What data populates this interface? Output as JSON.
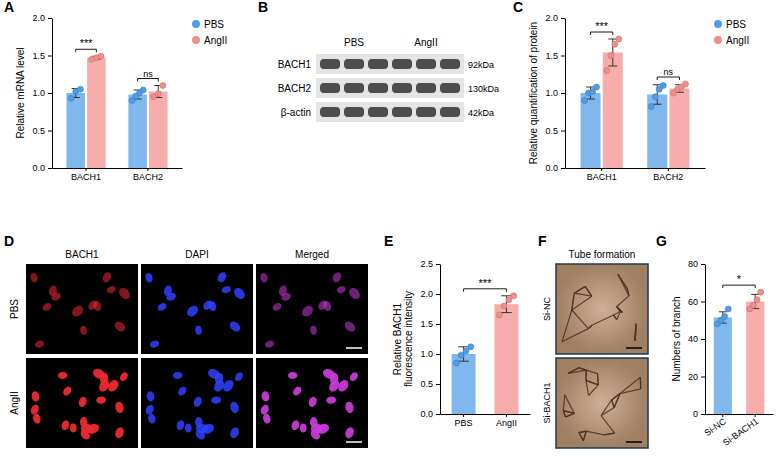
{
  "chart_data": [
    {
      "panel": "A",
      "type": "bar",
      "y_label": "Relative mRNA level",
      "categories": [
        "BACH1",
        "BACH2"
      ],
      "series": [
        {
          "name": "PBS",
          "color": "#4f9de8",
          "values": [
            1.0,
            0.98
          ],
          "errors": [
            0.06,
            0.06
          ],
          "points": [
            [
              0.93,
              1.02,
              1.05
            ],
            [
              0.9,
              0.96,
              1.0,
              1.04
            ]
          ]
        },
        {
          "name": "AngII",
          "color": "#f28e8a",
          "values": [
            1.47,
            1.02
          ],
          "errors": [
            0.02,
            0.08
          ],
          "points": [
            [
              1.45,
              1.47,
              1.49
            ],
            [
              0.95,
              0.99,
              1.1
            ]
          ]
        }
      ],
      "significance": [
        "***",
        "ns"
      ],
      "ylim": [
        0,
        2
      ],
      "yticks": [
        {
          "value": 0,
          "label": "0.0"
        },
        0.5,
        {
          "value": 1,
          "label": "1.0"
        },
        1.5,
        {
          "value": 2,
          "label": "2.0"
        }
      ],
      "legend": "right"
    },
    {
      "panel": "C",
      "type": "bar",
      "y_label": "Relative quantification of protein",
      "categories": [
        "BACH1",
        "BACH2"
      ],
      "series": [
        {
          "name": "PBS",
          "color": "#4f9de8",
          "values": [
            1.0,
            0.98
          ],
          "errors": [
            0.08,
            0.13
          ],
          "points": [
            [
              0.9,
              1.0,
              1.02,
              1.08
            ],
            [
              0.82,
              0.95,
              1.05,
              1.1
            ]
          ]
        },
        {
          "name": "AngII",
          "color": "#f28e8a",
          "values": [
            1.54,
            1.06
          ],
          "errors": [
            0.18,
            0.05
          ],
          "points": [
            [
              1.3,
              1.5,
              1.65,
              1.72
            ],
            [
              1.0,
              1.05,
              1.08,
              1.12
            ]
          ]
        }
      ],
      "significance": [
        "***",
        "ns"
      ],
      "ylim": [
        0,
        2
      ],
      "yticks": [
        {
          "value": 0,
          "label": "0.0"
        },
        0.5,
        {
          "value": 1,
          "label": "1.0"
        },
        1.5,
        {
          "value": 2,
          "label": "2.0"
        }
      ],
      "legend": "right"
    },
    {
      "panel": "E",
      "type": "bar",
      "y_label": "Relative BACH1 fluorescence intensity",
      "categories": [
        "PBS",
        "AngII"
      ],
      "values": [
        1.0,
        1.83
      ],
      "errors": [
        0.12,
        0.14
      ],
      "points": [
        [
          0.85,
          0.98,
          1.05,
          1.12
        ],
        [
          1.65,
          1.8,
          1.9,
          1.97
        ]
      ],
      "colors": [
        "#4f9de8",
        "#f28e8a"
      ],
      "significance": "***",
      "ylim": [
        0,
        2.5
      ],
      "yticks": [
        {
          "value": 0,
          "label": "0.0"
        },
        0.5,
        {
          "value": 1,
          "label": "1.0"
        },
        1.5,
        {
          "value": 2,
          "label": "2.0"
        },
        2.5
      ]
    },
    {
      "panel": "G",
      "type": "bar",
      "y_label": "Numbers of branch",
      "categories": [
        "Si-NC",
        "Si-BACH1"
      ],
      "values": [
        51.5,
        60
      ],
      "errors": [
        3,
        3.8
      ],
      "points": [
        [
          48,
          50,
          52,
          56
        ],
        [
          56,
          58,
          61,
          65
        ]
      ],
      "colors": [
        "#4f9de8",
        "#f28e8a"
      ],
      "significance": "*",
      "ylim": [
        0,
        80
      ],
      "yticks": [
        0,
        20,
        40,
        60,
        80
      ]
    }
  ],
  "blot": {
    "panel": "B",
    "groups": [
      "PBS",
      "AngII"
    ],
    "rows": [
      {
        "name": "BACH1",
        "size": "92kDa"
      },
      {
        "name": "BACH2",
        "size": "130kDa"
      },
      {
        "name": "β-actin",
        "size": "42kDa"
      }
    ]
  },
  "microscopy": {
    "panel": "D",
    "columns": [
      "BACH1",
      "DAPI",
      "Merged"
    ],
    "rows": [
      "PBS",
      "AngII"
    ]
  },
  "tube": {
    "panel": "F",
    "title": "Tube formation",
    "rows": [
      "Si-NC",
      "Si-BACH1"
    ]
  }
}
